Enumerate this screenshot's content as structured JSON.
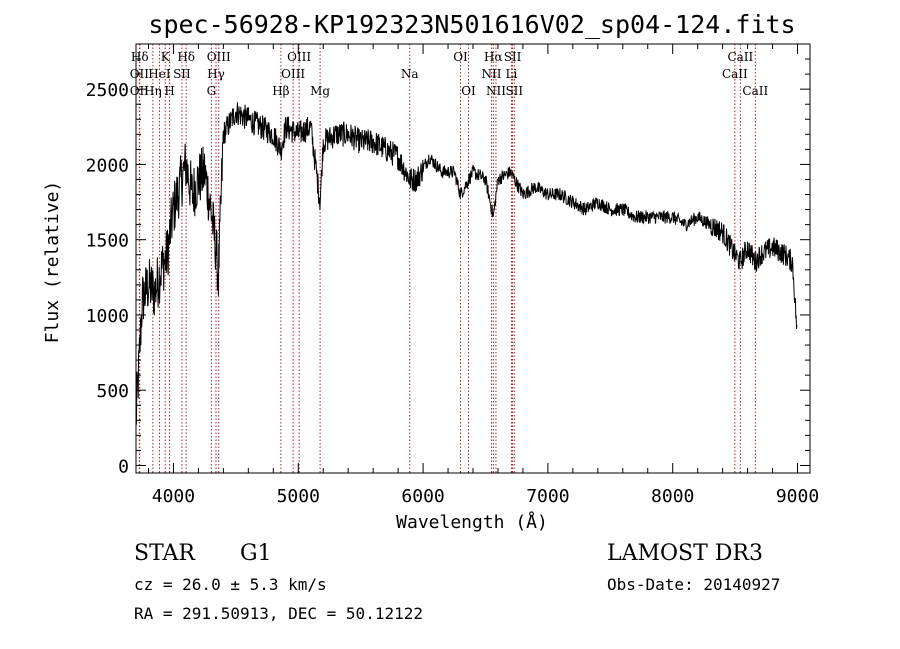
{
  "chart_data": {
    "type": "line",
    "title": "spec-56928-KP192323N501616V02_sp04-124.fits",
    "xlabel": "Wavelength (Å)",
    "ylabel": "Flux (relative)",
    "xlim": [
      3700,
      9100
    ],
    "ylim": [
      -50,
      2800
    ],
    "xticks": [
      4000,
      5000,
      6000,
      7000,
      8000,
      9000
    ],
    "xtick_labels": [
      "4000",
      "5000",
      "6000",
      "7000",
      "8000",
      "9000"
    ],
    "yticks": [
      0,
      500,
      1000,
      1500,
      2000,
      2500
    ],
    "ytick_labels": [
      "0",
      "500",
      "1000",
      "1500",
      "2000",
      "2500"
    ],
    "spectrum_anchors": {
      "wavelength": [
        3700,
        3720,
        3750,
        3800,
        3850,
        3900,
        3950,
        4000,
        4050,
        4100,
        4150,
        4200,
        4250,
        4300,
        4340,
        4360,
        4400,
        4500,
        4600,
        4700,
        4800,
        4861,
        4900,
        5000,
        5100,
        5175,
        5200,
        5300,
        5400,
        5500,
        5600,
        5700,
        5800,
        5893,
        5950,
        6050,
        6150,
        6250,
        6300,
        6400,
        6500,
        6563,
        6600,
        6700,
        6800,
        6900,
        7000,
        7100,
        7200,
        7300,
        7400,
        7500,
        7600,
        7700,
        7800,
        7900,
        8000,
        8100,
        8200,
        8300,
        8400,
        8498,
        8542,
        8600,
        8662,
        8700,
        8800,
        8900,
        8960,
        8995
      ],
      "flux": [
        300,
        600,
        1100,
        1200,
        1150,
        1300,
        1400,
        1700,
        1850,
        2000,
        1800,
        1900,
        1950,
        1700,
        1450,
        1250,
        2200,
        2350,
        2300,
        2250,
        2200,
        2100,
        2250,
        2200,
        2250,
        1750,
        2150,
        2200,
        2200,
        2150,
        2150,
        2100,
        2050,
        1900,
        1900,
        2050,
        1950,
        1950,
        1800,
        1950,
        1900,
        1650,
        1900,
        1950,
        1800,
        1850,
        1800,
        1800,
        1750,
        1700,
        1750,
        1700,
        1700,
        1650,
        1650,
        1650,
        1650,
        1600,
        1650,
        1600,
        1550,
        1400,
        1350,
        1450,
        1350,
        1400,
        1450,
        1400,
        1350,
        900
      ]
    },
    "spectral_lines": [
      {
        "label": "Hδ",
        "wavelength": 3730,
        "row": 1
      },
      {
        "label": "OII",
        "wavelength": 3727,
        "row": 2
      },
      {
        "label": "OII",
        "wavelength": 3727,
        "row": 3
      },
      {
        "label": "K",
        "wavelength": 3934,
        "row": 1
      },
      {
        "label": "HeI",
        "wavelength": 3888,
        "row": 2
      },
      {
        "label": "Hη",
        "wavelength": 3835,
        "row": 3
      },
      {
        "label": "Hδ",
        "wavelength": 4102,
        "row": 1
      },
      {
        "label": "SII",
        "wavelength": 4068,
        "row": 2
      },
      {
        "label": "H",
        "wavelength": 3969,
        "row": 3
      },
      {
        "label": "OIII",
        "wavelength": 4363,
        "row": 1
      },
      {
        "label": "Hγ",
        "wavelength": 4341,
        "row": 2
      },
      {
        "label": "G",
        "wavelength": 4304,
        "row": 3
      },
      {
        "label": "OIII",
        "wavelength": 5007,
        "row": 1
      },
      {
        "label": "OIII",
        "wavelength": 4959,
        "row": 2
      },
      {
        "label": "Hβ",
        "wavelength": 4861,
        "row": 3
      },
      {
        "label": "Mg",
        "wavelength": 5175,
        "row": 3
      },
      {
        "label": "Na",
        "wavelength": 5893,
        "row": 2
      },
      {
        "label": "OI",
        "wavelength": 6300,
        "row": 1
      },
      {
        "label": "OI",
        "wavelength": 6364,
        "row": 3
      },
      {
        "label": "Hα",
        "wavelength": 6563,
        "row": 1
      },
      {
        "label": "NII",
        "wavelength": 6548,
        "row": 2
      },
      {
        "label": "NII",
        "wavelength": 6584,
        "row": 3
      },
      {
        "label": "SII",
        "wavelength": 6717,
        "row": 1
      },
      {
        "label": "Li",
        "wavelength": 6708,
        "row": 2
      },
      {
        "label": "SII",
        "wavelength": 6731,
        "row": 3
      },
      {
        "label": "CaII",
        "wavelength": 8542,
        "row": 1
      },
      {
        "label": "CaII",
        "wavelength": 8498,
        "row": 2
      },
      {
        "label": "CaII",
        "wavelength": 8662,
        "row": 3
      }
    ],
    "legend": "none"
  },
  "info": {
    "object_class": "STAR",
    "subclass": "G1",
    "survey": "LAMOST DR3",
    "cz": "cz = 26.0 ± 5.3 km/s",
    "obs_date": "Obs-Date: 20140927",
    "coords": "RA = 291.50913, DEC =  50.12122"
  }
}
